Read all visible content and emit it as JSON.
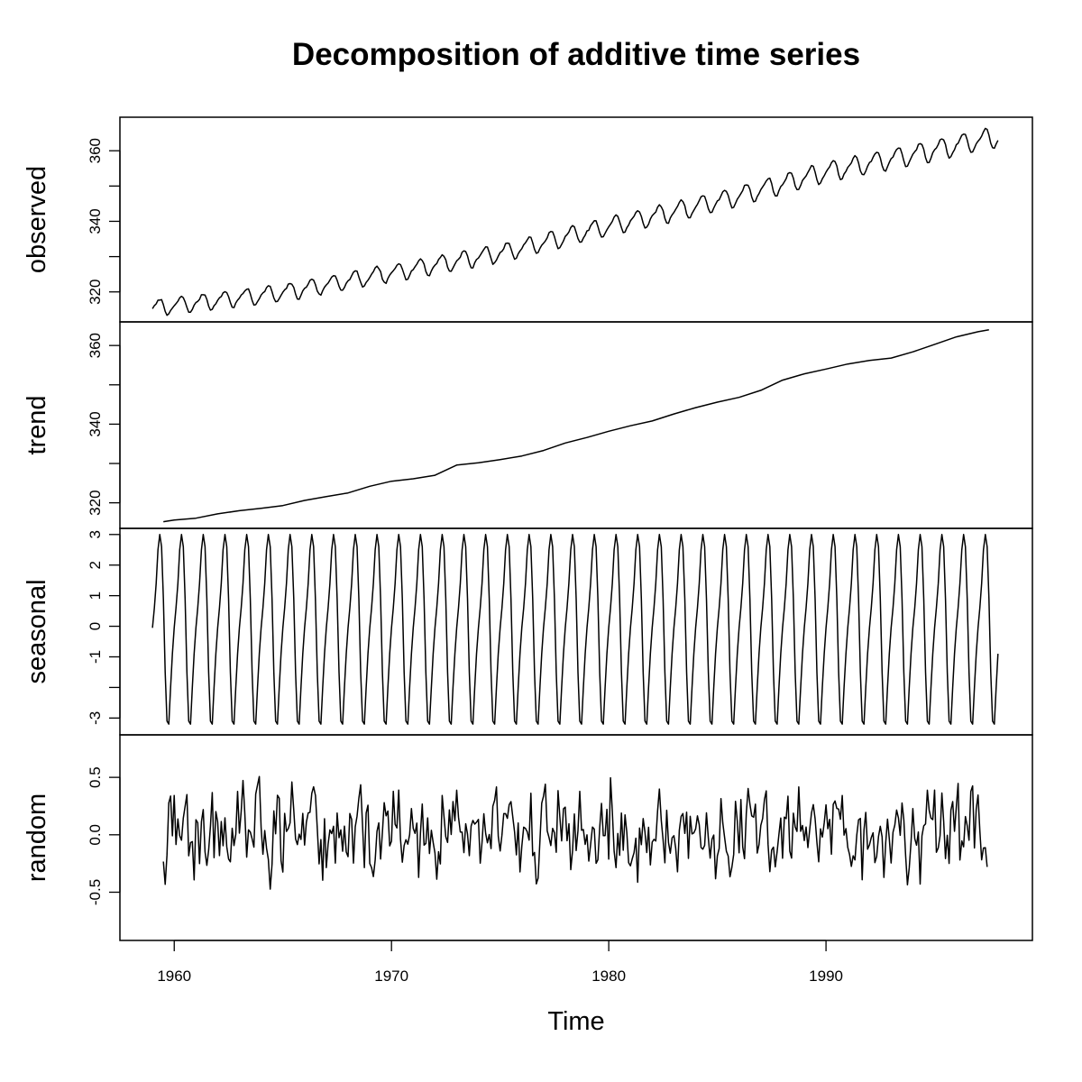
{
  "chart_data": {
    "type": "line",
    "title": "Decomposition of additive time series",
    "xlabel": "Time",
    "xlim": [
      1957.5,
      1999.5
    ],
    "x_ticks": [
      1960,
      1970,
      1980,
      1990
    ],
    "x_tick_labels": [
      "1960",
      "1970",
      "1980",
      "1990"
    ],
    "grid": false,
    "legend": "none",
    "series_color": "#000000",
    "panels": [
      {
        "name": "observed",
        "ylabel": "observed",
        "ylim": [
          311.5,
          369.5
        ],
        "y_ticks": [
          320,
          330,
          340,
          350,
          360
        ],
        "y_tick_labels": [
          "320",
          "",
          "340",
          "",
          "360"
        ],
        "generator": {
          "kind": "trend+seasonal",
          "start": 1959.0,
          "end": 1997.917,
          "step": 0.08333,
          "seasonal_amplitude": [
            2.3,
            3.0
          ],
          "trend_points": [
            [
              1959.0,
              315.4
            ],
            [
              1965.0,
              319.8
            ],
            [
              1970.0,
              325.4
            ],
            [
              1975.0,
              331.0
            ],
            [
              1980.0,
              338.6
            ],
            [
              1985.0,
              345.6
            ],
            [
              1990.0,
              354.0
            ],
            [
              1995.0,
              360.2
            ],
            [
              1997.917,
              364.0
            ]
          ]
        }
      },
      {
        "name": "trend",
        "ylabel": "trend",
        "ylim": [
          313.5,
          366.0
        ],
        "y_ticks": [
          320,
          330,
          340,
          350,
          360
        ],
        "y_tick_labels": [
          "320",
          "",
          "340",
          "",
          "360"
        ],
        "points": [
          [
            1959.5,
            315.2
          ],
          [
            1960.0,
            315.6
          ],
          [
            1961.0,
            316.1
          ],
          [
            1962.0,
            317.2
          ],
          [
            1963.0,
            318.0
          ],
          [
            1964.0,
            318.6
          ],
          [
            1965.0,
            319.3
          ],
          [
            1966.0,
            320.6
          ],
          [
            1967.0,
            321.6
          ],
          [
            1968.0,
            322.5
          ],
          [
            1969.0,
            324.2
          ],
          [
            1970.0,
            325.5
          ],
          [
            1971.0,
            326.1
          ],
          [
            1972.0,
            327.0
          ],
          [
            1973.0,
            329.6
          ],
          [
            1974.0,
            330.2
          ],
          [
            1975.0,
            331.0
          ],
          [
            1976.0,
            331.9
          ],
          [
            1977.0,
            333.3
          ],
          [
            1978.0,
            335.2
          ],
          [
            1979.0,
            336.6
          ],
          [
            1980.0,
            338.2
          ],
          [
            1981.0,
            339.6
          ],
          [
            1982.0,
            340.8
          ],
          [
            1983.0,
            342.6
          ],
          [
            1984.0,
            344.2
          ],
          [
            1985.0,
            345.6
          ],
          [
            1986.0,
            346.8
          ],
          [
            1987.0,
            348.6
          ],
          [
            1988.0,
            351.2
          ],
          [
            1989.0,
            352.8
          ],
          [
            1990.0,
            354.0
          ],
          [
            1991.0,
            355.3
          ],
          [
            1992.0,
            356.2
          ],
          [
            1993.0,
            356.8
          ],
          [
            1994.0,
            358.4
          ],
          [
            1995.0,
            360.3
          ],
          [
            1996.0,
            362.2
          ],
          [
            1997.0,
            363.5
          ],
          [
            1997.5,
            364.0
          ]
        ]
      },
      {
        "name": "seasonal",
        "ylabel": "seasonal",
        "ylim": [
          -3.55,
          3.2
        ],
        "y_ticks": [
          -3,
          -2,
          -1,
          0,
          1,
          2,
          3
        ],
        "y_tick_labels": [
          "-3",
          "",
          "-1",
          "0",
          "1",
          "2",
          "3"
        ],
        "pattern": [
          -0.05,
          0.6,
          1.4,
          2.5,
          3.0,
          2.6,
          0.9,
          -1.5,
          -3.1,
          -3.2,
          -2.0,
          -0.9
        ],
        "start": 1959.0,
        "end": 1997.917,
        "step": 0.08333
      },
      {
        "name": "random",
        "ylabel": "random",
        "ylim": [
          -0.92,
          0.87
        ],
        "y_ticks": [
          -0.5,
          0.0,
          0.5
        ],
        "y_tick_labels": [
          "-0.5",
          "0.0",
          "0.5"
        ],
        "start": 1959.5,
        "end": 1997.417,
        "step": 0.08333,
        "noise_sd": 0.25,
        "noise_min": -0.88,
        "noise_max": 0.82
      }
    ]
  }
}
